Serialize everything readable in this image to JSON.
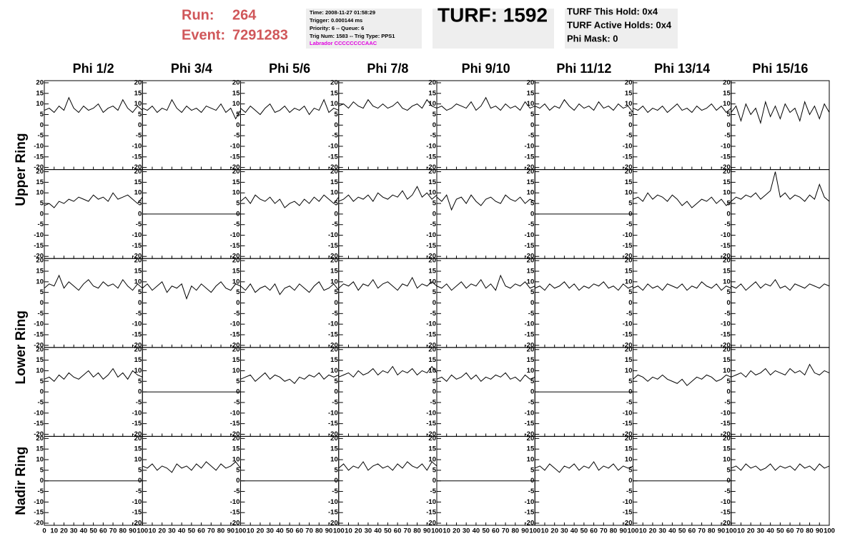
{
  "header": {
    "run_label": "Run:",
    "run": "264",
    "event_label": "Event:",
    "event": "7291283",
    "info": [
      "Time: 2008-11-27 01:58:29",
      "Trigger: 0.000144 ms",
      "Priority: 6 -- Queue: 6",
      "Trig Num: 1583 -- Trig Type: PPS1"
    ],
    "labrador": "Labrador CCCCCCCCAAC",
    "turf": "TURF: 1592",
    "turf_info": [
      "TURF This Hold: 0x4",
      "TURF Active Holds: 0x4",
      "Phi Mask: 0"
    ]
  },
  "chart_data": {
    "type": "line",
    "columns": [
      "Phi 1/2",
      "Phi 3/4",
      "Phi 5/6",
      "Phi 7/8",
      "Phi 9/10",
      "Phi 11/12",
      "Phi 13/14",
      "Phi 15/16"
    ],
    "ring_labels": [
      "Upper Ring",
      "Lower Ring",
      "Nadir Ring"
    ],
    "color": "#000000",
    "xlim": [
      0,
      100
    ],
    "ylim": [
      -21,
      21
    ],
    "xticks": [
      0,
      10,
      20,
      30,
      40,
      50,
      60,
      70,
      80,
      90,
      100
    ],
    "yticks": [
      -20,
      -15,
      -10,
      -5,
      0,
      5,
      10,
      15,
      20
    ],
    "x": [
      0,
      5,
      10,
      15,
      20,
      25,
      30,
      35,
      40,
      45,
      50,
      55,
      60,
      65,
      70,
      75,
      80,
      85,
      90,
      95,
      100
    ],
    "panels": [
      [
        [
          7,
          8,
          6,
          9,
          7,
          13,
          8,
          6,
          9,
          7,
          8,
          10,
          6,
          8,
          9,
          7,
          12,
          8,
          6,
          9,
          7
        ],
        [
          8,
          7,
          9,
          6,
          8,
          7,
          12,
          8,
          6,
          9,
          7,
          8,
          6,
          9,
          8,
          7,
          10,
          6,
          8,
          3,
          7
        ],
        [
          8,
          6,
          9,
          7,
          5,
          8,
          10,
          6,
          7,
          9,
          6,
          8,
          7,
          9,
          5,
          8,
          7,
          12,
          6,
          8,
          7
        ],
        [
          9,
          10,
          8,
          11,
          9,
          8,
          12,
          9,
          8,
          10,
          8,
          9,
          11,
          8,
          7,
          9,
          10,
          8,
          12,
          9,
          8
        ],
        [
          8,
          9,
          7,
          8,
          10,
          9,
          8,
          11,
          7,
          9,
          13,
          8,
          9,
          7,
          10,
          8,
          9,
          7,
          11,
          8,
          9
        ],
        [
          9,
          8,
          10,
          7,
          9,
          8,
          12,
          9,
          7,
          10,
          8,
          9,
          7,
          11,
          8,
          9,
          7,
          10,
          8,
          9,
          6
        ],
        [
          8,
          7,
          9,
          6,
          8,
          7,
          9,
          6,
          8,
          10,
          7,
          8,
          6,
          9,
          7,
          8,
          10,
          7,
          9,
          6,
          8
        ],
        [
          6,
          9,
          2,
          10,
          5,
          8,
          1,
          11,
          4,
          9,
          3,
          10,
          6,
          8,
          2,
          11,
          5,
          9,
          3,
          10,
          6
        ]
      ],
      [
        [
          4,
          5,
          3,
          6,
          5,
          7,
          6,
          8,
          7,
          6,
          9,
          7,
          8,
          6,
          10,
          7,
          8,
          9,
          7,
          5,
          8
        ],
        [
          0,
          0,
          0,
          0,
          0,
          0,
          0,
          0,
          0,
          0,
          0,
          0,
          0,
          0,
          0,
          0,
          0,
          0,
          0,
          0,
          0
        ],
        [
          6,
          8,
          5,
          9,
          7,
          6,
          8,
          5,
          7,
          3,
          5,
          6,
          4,
          7,
          5,
          8,
          6,
          9,
          7,
          5,
          8
        ],
        [
          6,
          7,
          9,
          6,
          8,
          7,
          9,
          6,
          10,
          8,
          7,
          9,
          8,
          11,
          7,
          9,
          13,
          8,
          10,
          7,
          9
        ],
        [
          8,
          6,
          9,
          2,
          7,
          8,
          5,
          9,
          6,
          4,
          7,
          8,
          6,
          5,
          9,
          7,
          6,
          8,
          5,
          7,
          6
        ],
        [
          0,
          0,
          0,
          0,
          0,
          0,
          0,
          0,
          0,
          0,
          0,
          0,
          0,
          0,
          0,
          0,
          0,
          0,
          0,
          0,
          0
        ],
        [
          7,
          8,
          6,
          10,
          7,
          9,
          8,
          6,
          9,
          7,
          4,
          6,
          3,
          5,
          7,
          6,
          8,
          5,
          7,
          4,
          6
        ],
        [
          6,
          8,
          7,
          9,
          8,
          10,
          7,
          9,
          11,
          20,
          8,
          10,
          7,
          9,
          8,
          6,
          9,
          7,
          14,
          8,
          6
        ]
      ],
      [
        [
          7,
          9,
          8,
          13,
          7,
          10,
          8,
          6,
          9,
          11,
          8,
          7,
          10,
          8,
          9,
          7,
          11,
          8,
          6,
          9,
          7
        ],
        [
          7,
          9,
          6,
          8,
          10,
          5,
          8,
          7,
          9,
          2,
          8,
          6,
          9,
          7,
          5,
          8,
          10,
          7,
          6,
          9,
          8
        ],
        [
          8,
          6,
          9,
          5,
          7,
          8,
          6,
          9,
          4,
          7,
          8,
          6,
          9,
          7,
          5,
          8,
          10,
          6,
          7,
          9,
          6
        ],
        [
          7,
          9,
          8,
          10,
          6,
          9,
          8,
          11,
          7,
          9,
          10,
          8,
          6,
          9,
          8,
          12,
          7,
          9,
          8,
          10,
          8
        ],
        [
          8,
          7,
          9,
          6,
          8,
          10,
          7,
          9,
          8,
          11,
          7,
          9,
          6,
          13,
          8,
          7,
          9,
          8,
          10,
          7,
          8
        ],
        [
          7,
          8,
          6,
          9,
          7,
          8,
          10,
          7,
          9,
          6,
          8,
          7,
          9,
          8,
          10,
          7,
          8,
          6,
          9,
          7,
          8
        ],
        [
          7,
          8,
          6,
          9,
          7,
          8,
          6,
          9,
          8,
          7,
          9,
          6,
          8,
          7,
          10,
          8,
          7,
          9,
          6,
          8,
          7
        ],
        [
          8,
          7,
          9,
          6,
          8,
          10,
          7,
          9,
          8,
          11,
          7,
          8,
          6,
          9,
          8,
          7,
          9,
          8,
          7,
          9,
          8
        ]
      ],
      [
        [
          6,
          7,
          5,
          8,
          6,
          9,
          7,
          6,
          8,
          10,
          7,
          9,
          6,
          8,
          11,
          7,
          9,
          6,
          10,
          8,
          7
        ],
        [
          0,
          0,
          0,
          0,
          0,
          0,
          0,
          0,
          0,
          0,
          0,
          0,
          0,
          0,
          0,
          0,
          0,
          0,
          0,
          0,
          0
        ],
        [
          6,
          7,
          8,
          5,
          7,
          9,
          6,
          8,
          7,
          5,
          6,
          4,
          7,
          6,
          8,
          7,
          9,
          6,
          8,
          7,
          8
        ],
        [
          7,
          8,
          9,
          7,
          10,
          8,
          9,
          11,
          8,
          10,
          9,
          12,
          8,
          10,
          9,
          11,
          8,
          10,
          9,
          12,
          9
        ],
        [
          6,
          7,
          5,
          8,
          6,
          7,
          9,
          6,
          8,
          5,
          7,
          6,
          8,
          7,
          9,
          6,
          7,
          5,
          8,
          6,
          7
        ],
        [
          0,
          0,
          0,
          0,
          0,
          0,
          0,
          0,
          0,
          0,
          0,
          0,
          0,
          0,
          0,
          0,
          0,
          0,
          0,
          0,
          0
        ],
        [
          6,
          8,
          7,
          5,
          7,
          6,
          8,
          6,
          5,
          4,
          6,
          3,
          5,
          7,
          6,
          8,
          7,
          5,
          6,
          8,
          7
        ],
        [
          7,
          8,
          9,
          7,
          10,
          8,
          9,
          11,
          8,
          10,
          9,
          8,
          11,
          9,
          10,
          8,
          13,
          9,
          8,
          10,
          9
        ]
      ],
      [
        [
          0,
          0,
          0,
          0,
          0,
          0,
          0,
          0,
          0,
          0,
          0,
          0,
          0,
          0,
          0,
          0,
          0,
          0,
          0,
          0,
          0
        ],
        [
          7,
          6,
          8,
          5,
          7,
          6,
          4,
          8,
          6,
          7,
          5,
          8,
          6,
          9,
          7,
          5,
          8,
          6,
          7,
          9,
          6
        ],
        [
          0,
          0,
          0,
          0,
          0,
          0,
          0,
          0,
          0,
          0,
          0,
          0,
          0,
          0,
          0,
          0,
          0,
          0,
          0,
          0,
          0
        ],
        [
          6,
          8,
          5,
          7,
          6,
          9,
          5,
          7,
          8,
          6,
          7,
          5,
          8,
          6,
          9,
          7,
          6,
          8,
          5,
          9,
          7
        ],
        [
          0,
          0,
          0,
          0,
          0,
          0,
          0,
          0,
          0,
          0,
          0,
          0,
          0,
          0,
          0,
          0,
          0,
          0,
          0,
          0,
          0
        ],
        [
          6,
          7,
          5,
          8,
          6,
          4,
          7,
          6,
          8,
          5,
          7,
          6,
          9,
          5,
          7,
          6,
          8,
          5,
          7,
          6,
          7
        ],
        [
          0,
          0,
          0,
          0,
          0,
          0,
          0,
          0,
          0,
          0,
          0,
          0,
          0,
          0,
          0,
          0,
          0,
          0,
          0,
          0,
          0
        ],
        [
          6,
          7,
          5,
          8,
          6,
          7,
          5,
          6,
          8,
          5,
          7,
          6,
          7,
          5,
          8,
          6,
          7,
          5,
          8,
          6,
          7
        ]
      ]
    ]
  }
}
